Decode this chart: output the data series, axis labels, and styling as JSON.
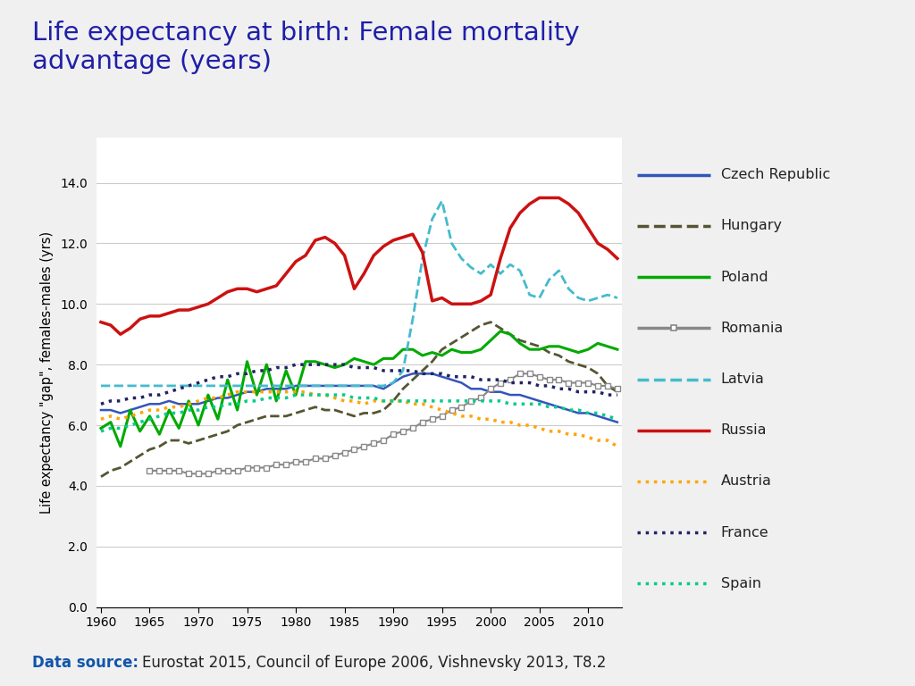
{
  "title": "Life expectancy at birth: Female mortality\nadvantage (years)",
  "title_color": "#1F1FAA",
  "ylabel": "Life expectancy \"gap\", females-males (yrs)",
  "background_outer": "#DCDCDC",
  "background_inner": "#FFFFFF",
  "ylim": [
    0,
    15.5
  ],
  "yticks": [
    0.0,
    2.0,
    4.0,
    6.0,
    8.0,
    10.0,
    12.0,
    14.0
  ],
  "xlim": [
    1959.5,
    2013.5
  ],
  "xticks": [
    1960,
    1965,
    1970,
    1975,
    1980,
    1985,
    1990,
    1995,
    2000,
    2005,
    2010
  ],
  "series": {
    "Czech Republic": {
      "color": "#3355BB",
      "linestyle": "-",
      "linewidth": 1.8,
      "marker": null,
      "years": [
        1960,
        1961,
        1962,
        1963,
        1964,
        1965,
        1966,
        1967,
        1968,
        1969,
        1970,
        1971,
        1972,
        1973,
        1974,
        1975,
        1976,
        1977,
        1978,
        1979,
        1980,
        1981,
        1982,
        1983,
        1984,
        1985,
        1986,
        1987,
        1988,
        1989,
        1990,
        1991,
        1992,
        1993,
        1994,
        1995,
        1996,
        1997,
        1998,
        1999,
        2000,
        2001,
        2002,
        2003,
        2004,
        2005,
        2006,
        2007,
        2008,
        2009,
        2010,
        2011,
        2012,
        2013
      ],
      "values": [
        6.5,
        6.5,
        6.4,
        6.5,
        6.6,
        6.7,
        6.7,
        6.8,
        6.7,
        6.7,
        6.7,
        6.8,
        6.9,
        6.9,
        7.0,
        7.1,
        7.1,
        7.2,
        7.2,
        7.2,
        7.3,
        7.3,
        7.3,
        7.3,
        7.3,
        7.3,
        7.3,
        7.3,
        7.3,
        7.2,
        7.4,
        7.6,
        7.7,
        7.7,
        7.7,
        7.6,
        7.5,
        7.4,
        7.2,
        7.2,
        7.1,
        7.1,
        7.0,
        7.0,
        6.9,
        6.8,
        6.7,
        6.6,
        6.5,
        6.4,
        6.4,
        6.3,
        6.2,
        6.1
      ]
    },
    "Hungary": {
      "color": "#555533",
      "linestyle": "--",
      "linewidth": 2.0,
      "marker": null,
      "years": [
        1960,
        1961,
        1962,
        1963,
        1964,
        1965,
        1966,
        1967,
        1968,
        1969,
        1970,
        1971,
        1972,
        1973,
        1974,
        1975,
        1976,
        1977,
        1978,
        1979,
        1980,
        1981,
        1982,
        1983,
        1984,
        1985,
        1986,
        1987,
        1988,
        1989,
        1990,
        1991,
        1992,
        1993,
        1994,
        1995,
        1996,
        1997,
        1998,
        1999,
        2000,
        2001,
        2002,
        2003,
        2004,
        2005,
        2006,
        2007,
        2008,
        2009,
        2010,
        2011,
        2012,
        2013
      ],
      "values": [
        4.3,
        4.5,
        4.6,
        4.8,
        5.0,
        5.2,
        5.3,
        5.5,
        5.5,
        5.4,
        5.5,
        5.6,
        5.7,
        5.8,
        6.0,
        6.1,
        6.2,
        6.3,
        6.3,
        6.3,
        6.4,
        6.5,
        6.6,
        6.5,
        6.5,
        6.4,
        6.3,
        6.4,
        6.4,
        6.5,
        6.8,
        7.2,
        7.5,
        7.8,
        8.1,
        8.5,
        8.7,
        8.9,
        9.1,
        9.3,
        9.4,
        9.2,
        9.0,
        8.8,
        8.7,
        8.6,
        8.4,
        8.3,
        8.1,
        8.0,
        7.9,
        7.7,
        7.3,
        7.1
      ]
    },
    "Poland": {
      "color": "#00AA00",
      "linestyle": "-",
      "linewidth": 2.2,
      "marker": null,
      "years": [
        1960,
        1961,
        1962,
        1963,
        1964,
        1965,
        1966,
        1967,
        1968,
        1969,
        1970,
        1971,
        1972,
        1973,
        1974,
        1975,
        1976,
        1977,
        1978,
        1979,
        1980,
        1981,
        1982,
        1983,
        1984,
        1985,
        1986,
        1987,
        1988,
        1989,
        1990,
        1991,
        1992,
        1993,
        1994,
        1995,
        1996,
        1997,
        1998,
        1999,
        2000,
        2001,
        2002,
        2003,
        2004,
        2005,
        2006,
        2007,
        2008,
        2009,
        2010,
        2011,
        2012,
        2013
      ],
      "values": [
        5.9,
        6.1,
        5.3,
        6.5,
        5.8,
        6.3,
        5.7,
        6.5,
        5.9,
        6.8,
        6.0,
        7.0,
        6.2,
        7.5,
        6.5,
        8.1,
        7.0,
        8.0,
        6.8,
        7.8,
        7.0,
        8.1,
        8.1,
        8.0,
        7.9,
        8.0,
        8.2,
        8.1,
        8.0,
        8.2,
        8.2,
        8.5,
        8.5,
        8.3,
        8.4,
        8.3,
        8.5,
        8.4,
        8.4,
        8.5,
        8.8,
        9.1,
        9.0,
        8.7,
        8.5,
        8.5,
        8.6,
        8.6,
        8.5,
        8.4,
        8.5,
        8.7,
        8.6,
        8.5
      ]
    },
    "Romania": {
      "color": "#888888",
      "linestyle": "-",
      "linewidth": 1.5,
      "marker": "s",
      "markersize": 4,
      "markerfacecolor": "white",
      "markeredgecolor": "#888888",
      "years": [
        1965,
        1966,
        1967,
        1968,
        1969,
        1970,
        1971,
        1972,
        1973,
        1974,
        1975,
        1976,
        1977,
        1978,
        1979,
        1980,
        1981,
        1982,
        1983,
        1984,
        1985,
        1986,
        1987,
        1988,
        1989,
        1990,
        1991,
        1992,
        1993,
        1994,
        1995,
        1996,
        1997,
        1998,
        1999,
        2000,
        2001,
        2002,
        2003,
        2004,
        2005,
        2006,
        2007,
        2008,
        2009,
        2010,
        2011,
        2012,
        2013
      ],
      "values": [
        4.5,
        4.5,
        4.5,
        4.5,
        4.4,
        4.4,
        4.4,
        4.5,
        4.5,
        4.5,
        4.6,
        4.6,
        4.6,
        4.7,
        4.7,
        4.8,
        4.8,
        4.9,
        4.9,
        5.0,
        5.1,
        5.2,
        5.3,
        5.4,
        5.5,
        5.7,
        5.8,
        5.9,
        6.1,
        6.2,
        6.3,
        6.5,
        6.6,
        6.8,
        6.9,
        7.2,
        7.4,
        7.5,
        7.7,
        7.7,
        7.6,
        7.5,
        7.5,
        7.4,
        7.4,
        7.4,
        7.3,
        7.3,
        7.2
      ]
    },
    "Latvia": {
      "color": "#44BBCC",
      "linestyle": "--",
      "linewidth": 2.0,
      "marker": null,
      "years": [
        1960,
        1961,
        1962,
        1963,
        1964,
        1965,
        1966,
        1967,
        1968,
        1969,
        1970,
        1971,
        1972,
        1973,
        1974,
        1975,
        1976,
        1977,
        1978,
        1979,
        1980,
        1981,
        1982,
        1983,
        1984,
        1985,
        1986,
        1987,
        1988,
        1989,
        1990,
        1991,
        1992,
        1993,
        1994,
        1995,
        1996,
        1997,
        1998,
        1999,
        2000,
        2001,
        2002,
        2003,
        2004,
        2005,
        2006,
        2007,
        2008,
        2009,
        2010,
        2011,
        2012,
        2013
      ],
      "values": [
        7.3,
        7.3,
        7.3,
        7.3,
        7.3,
        7.3,
        7.3,
        7.3,
        7.3,
        7.3,
        7.3,
        7.3,
        7.3,
        7.3,
        7.3,
        7.3,
        7.3,
        7.3,
        7.3,
        7.3,
        7.3,
        7.3,
        7.3,
        7.3,
        7.3,
        7.3,
        7.3,
        7.3,
        7.3,
        7.3,
        7.4,
        7.8,
        9.5,
        11.5,
        12.8,
        13.4,
        12.0,
        11.5,
        11.2,
        11.0,
        11.3,
        11.0,
        11.3,
        11.1,
        10.3,
        10.2,
        10.8,
        11.1,
        10.5,
        10.2,
        10.1,
        10.2,
        10.3,
        10.2
      ]
    },
    "Russia": {
      "color": "#CC1111",
      "linestyle": "-",
      "linewidth": 2.5,
      "marker": null,
      "years": [
        1960,
        1961,
        1962,
        1963,
        1964,
        1965,
        1966,
        1967,
        1968,
        1969,
        1970,
        1971,
        1972,
        1973,
        1974,
        1975,
        1976,
        1977,
        1978,
        1979,
        1980,
        1981,
        1982,
        1983,
        1984,
        1985,
        1986,
        1987,
        1988,
        1989,
        1990,
        1991,
        1992,
        1993,
        1994,
        1995,
        1996,
        1997,
        1998,
        1999,
        2000,
        2001,
        2002,
        2003,
        2004,
        2005,
        2006,
        2007,
        2008,
        2009,
        2010,
        2011,
        2012,
        2013
      ],
      "values": [
        9.4,
        9.3,
        9.0,
        9.2,
        9.5,
        9.6,
        9.6,
        9.7,
        9.8,
        9.8,
        9.9,
        10.0,
        10.2,
        10.4,
        10.5,
        10.5,
        10.4,
        10.5,
        10.6,
        11.0,
        11.4,
        11.6,
        12.1,
        12.2,
        12.0,
        11.6,
        10.5,
        11.0,
        11.6,
        11.9,
        12.1,
        12.2,
        12.3,
        11.7,
        10.1,
        10.2,
        10.0,
        10.0,
        10.0,
        10.1,
        10.3,
        11.5,
        12.5,
        13.0,
        13.3,
        13.5,
        13.5,
        13.5,
        13.3,
        13.0,
        12.5,
        12.0,
        11.8,
        11.5
      ]
    },
    "Austria": {
      "color": "#FFA500",
      "linestyle": ":",
      "linewidth": 2.5,
      "marker": null,
      "years": [
        1960,
        1961,
        1962,
        1963,
        1964,
        1965,
        1966,
        1967,
        1968,
        1969,
        1970,
        1971,
        1972,
        1973,
        1974,
        1975,
        1976,
        1977,
        1978,
        1979,
        1980,
        1981,
        1982,
        1983,
        1984,
        1985,
        1986,
        1987,
        1988,
        1989,
        1990,
        1991,
        1992,
        1993,
        1994,
        1995,
        1996,
        1997,
        1998,
        1999,
        2000,
        2001,
        2002,
        2003,
        2004,
        2005,
        2006,
        2007,
        2008,
        2009,
        2010,
        2011,
        2012,
        2013
      ],
      "values": [
        6.2,
        6.3,
        6.2,
        6.3,
        6.4,
        6.5,
        6.5,
        6.6,
        6.6,
        6.7,
        6.8,
        6.9,
        6.9,
        7.0,
        7.1,
        7.1,
        7.1,
        7.1,
        7.1,
        7.1,
        7.1,
        7.1,
        7.0,
        7.0,
        6.9,
        6.8,
        6.8,
        6.7,
        6.8,
        6.8,
        6.8,
        6.8,
        6.7,
        6.7,
        6.6,
        6.5,
        6.4,
        6.3,
        6.3,
        6.2,
        6.2,
        6.1,
        6.1,
        6.0,
        6.0,
        5.9,
        5.8,
        5.8,
        5.7,
        5.7,
        5.6,
        5.5,
        5.5,
        5.3
      ]
    },
    "France": {
      "color": "#222266",
      "linestyle": ":",
      "linewidth": 2.5,
      "marker": null,
      "years": [
        1960,
        1961,
        1962,
        1963,
        1964,
        1965,
        1966,
        1967,
        1968,
        1969,
        1970,
        1971,
        1972,
        1973,
        1974,
        1975,
        1976,
        1977,
        1978,
        1979,
        1980,
        1981,
        1982,
        1983,
        1984,
        1985,
        1986,
        1987,
        1988,
        1989,
        1990,
        1991,
        1992,
        1993,
        1994,
        1995,
        1996,
        1997,
        1998,
        1999,
        2000,
        2001,
        2002,
        2003,
        2004,
        2005,
        2006,
        2007,
        2008,
        2009,
        2010,
        2011,
        2012,
        2013
      ],
      "values": [
        6.7,
        6.8,
        6.8,
        6.9,
        6.9,
        7.0,
        7.0,
        7.1,
        7.2,
        7.3,
        7.4,
        7.5,
        7.6,
        7.6,
        7.7,
        7.7,
        7.8,
        7.8,
        7.9,
        7.9,
        8.0,
        8.0,
        8.0,
        8.0,
        8.0,
        8.0,
        7.9,
        7.9,
        7.9,
        7.8,
        7.8,
        7.8,
        7.8,
        7.7,
        7.7,
        7.7,
        7.6,
        7.6,
        7.6,
        7.5,
        7.5,
        7.5,
        7.4,
        7.4,
        7.4,
        7.3,
        7.3,
        7.2,
        7.2,
        7.1,
        7.1,
        7.1,
        7.0,
        7.0
      ]
    },
    "Spain": {
      "color": "#00CC88",
      "linestyle": ":",
      "linewidth": 2.5,
      "marker": null,
      "years": [
        1960,
        1961,
        1962,
        1963,
        1964,
        1965,
        1966,
        1967,
        1968,
        1969,
        1970,
        1971,
        1972,
        1973,
        1974,
        1975,
        1976,
        1977,
        1978,
        1979,
        1980,
        1981,
        1982,
        1983,
        1984,
        1985,
        1986,
        1987,
        1988,
        1989,
        1990,
        1991,
        1992,
        1993,
        1994,
        1995,
        1996,
        1997,
        1998,
        1999,
        2000,
        2001,
        2002,
        2003,
        2004,
        2005,
        2006,
        2007,
        2008,
        2009,
        2010,
        2011,
        2012,
        2013
      ],
      "values": [
        5.8,
        5.9,
        5.9,
        6.0,
        6.1,
        6.2,
        6.3,
        6.4,
        6.4,
        6.5,
        6.5,
        6.6,
        6.6,
        6.7,
        6.7,
        6.8,
        6.8,
        6.9,
        6.9,
        6.9,
        7.0,
        7.0,
        7.0,
        7.0,
        7.0,
        7.0,
        6.9,
        6.9,
        6.9,
        6.8,
        6.8,
        6.8,
        6.8,
        6.8,
        6.8,
        6.8,
        6.8,
        6.8,
        6.8,
        6.8,
        6.8,
        6.8,
        6.7,
        6.7,
        6.7,
        6.7,
        6.6,
        6.6,
        6.5,
        6.5,
        6.4,
        6.4,
        6.3,
        6.2
      ]
    }
  },
  "legend_items": [
    {
      "label": "Czech Republic",
      "color": "#3355BB",
      "linestyle": "-",
      "marker": null
    },
    {
      "label": "Hungary",
      "color": "#555533",
      "linestyle": "--",
      "marker": null
    },
    {
      "label": "Poland",
      "color": "#00AA00",
      "linestyle": "-",
      "marker": null
    },
    {
      "label": "Romania",
      "color": "#888888",
      "linestyle": "-",
      "marker": "s"
    },
    {
      "label": "Latvia",
      "color": "#44BBCC",
      "linestyle": "--",
      "marker": null
    },
    {
      "label": "Russia",
      "color": "#CC1111",
      "linestyle": "-",
      "marker": null
    },
    {
      "label": "Austria",
      "color": "#FFA500",
      "linestyle": ":",
      "marker": null
    },
    {
      "label": "France",
      "color": "#222266",
      "linestyle": ":",
      "marker": null
    },
    {
      "label": "Spain",
      "color": "#00CC88",
      "linestyle": ":",
      "marker": null
    }
  ]
}
